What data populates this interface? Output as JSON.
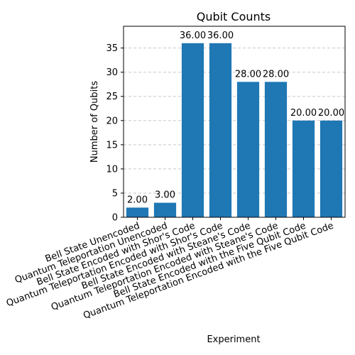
{
  "chart_data": {
    "type": "bar",
    "title": "Qubit Counts",
    "xlabel": "Experiment",
    "ylabel": "Number of Qubits",
    "categories": [
      "Bell State Unencoded",
      "Quantum Teleportation Unencoded",
      "Bell State Encoded with Shor's Code",
      "Quantum Teleportation Encoded with Shor's Code",
      "Bell State Encoded with Steane's Code",
      "Quantum Teleportation Encoded with Steane's Code",
      "Bell State Encoded with the Five Qubit Code",
      "Quantum Teleportation Encoded with the Five Qubit Code"
    ],
    "values": [
      2,
      3,
      36,
      36,
      28,
      28,
      20,
      20
    ],
    "data_labels": [
      "2.00",
      "3.00",
      "36.00",
      "36.00",
      "28.00",
      "28.00",
      "20.00",
      "20.00"
    ],
    "yticks": [
      0,
      5,
      10,
      15,
      20,
      25,
      30,
      35
    ],
    "ylim": [
      0,
      39.5
    ],
    "grid": "y-dashed",
    "bar_color": "#1f77b4",
    "grid_color": "#c8c8c8"
  }
}
